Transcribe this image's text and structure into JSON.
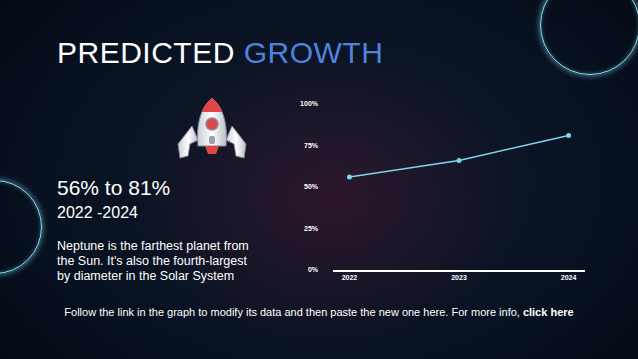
{
  "slide": {
    "title": [
      "PREDICTED",
      "GROWTH"
    ],
    "highlight": "56% to 81%",
    "period": "2022 -2024",
    "body": [
      "Neptune is the farthest planet from",
      "the Sun. It's also the fourth-largest",
      "by diameter in the Solar System"
    ],
    "footer": "Follow the link in the graph to modify its data and then paste the new one here. For more info,",
    "footer_link": "click here"
  },
  "chart_data": {
    "type": "line",
    "categories": [
      "2022",
      "2023",
      "2024"
    ],
    "values": [
      56,
      66,
      81
    ],
    "color": "#7fd3ea",
    "marker": "circle",
    "line_style": "solid",
    "ylim": [
      0,
      100
    ],
    "yticks": [
      {
        "value": 0,
        "label": "0%"
      },
      {
        "value": 25,
        "label": "25%"
      },
      {
        "value": 50,
        "label": "50%"
      },
      {
        "value": 75,
        "label": "75%"
      },
      {
        "value": 100,
        "label": "100%"
      }
    ],
    "grid": false
  }
}
